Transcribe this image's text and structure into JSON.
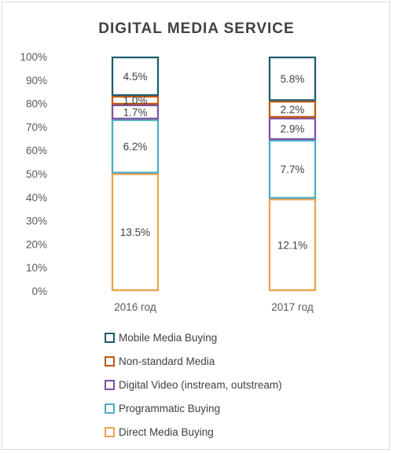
{
  "chart_data": {
    "type": "bar",
    "stacked": true,
    "normalized_percent": true,
    "title": "DIGITAL MEDIA SERVICE",
    "categories": [
      "2016 год",
      "2017 год"
    ],
    "y_ticks": [
      "0%",
      "10%",
      "20%",
      "30%",
      "40%",
      "50%",
      "60%",
      "70%",
      "80%",
      "90%",
      "100%"
    ],
    "ylim": [
      0,
      100
    ],
    "grid": false,
    "legend_position": "bottom",
    "series": [
      {
        "name": "Direct Media Buying",
        "color": "#f0a04b",
        "values": [
          13.5,
          12.1
        ],
        "labels": [
          "13.5%",
          "12.1%"
        ]
      },
      {
        "name": "Programmatic Buying",
        "color": "#4bacc6",
        "values": [
          6.2,
          7.7
        ],
        "labels": [
          "6.2%",
          "7.7%"
        ]
      },
      {
        "name": "Digital Video (instream, outstream)",
        "color": "#7f4fa3",
        "values": [
          1.7,
          2.9
        ],
        "labels": [
          "1.7%",
          "2.9%"
        ]
      },
      {
        "name": "Non-standard Media",
        "color": "#c0580f",
        "values": [
          1.0,
          2.2
        ],
        "labels": [
          "1.0%",
          "2.2%"
        ]
      },
      {
        "name": "Mobile Media Buying",
        "color": "#1f5c6b",
        "values": [
          4.5,
          5.8
        ],
        "labels": [
          "4.5%",
          "5.8%"
        ]
      }
    ]
  }
}
